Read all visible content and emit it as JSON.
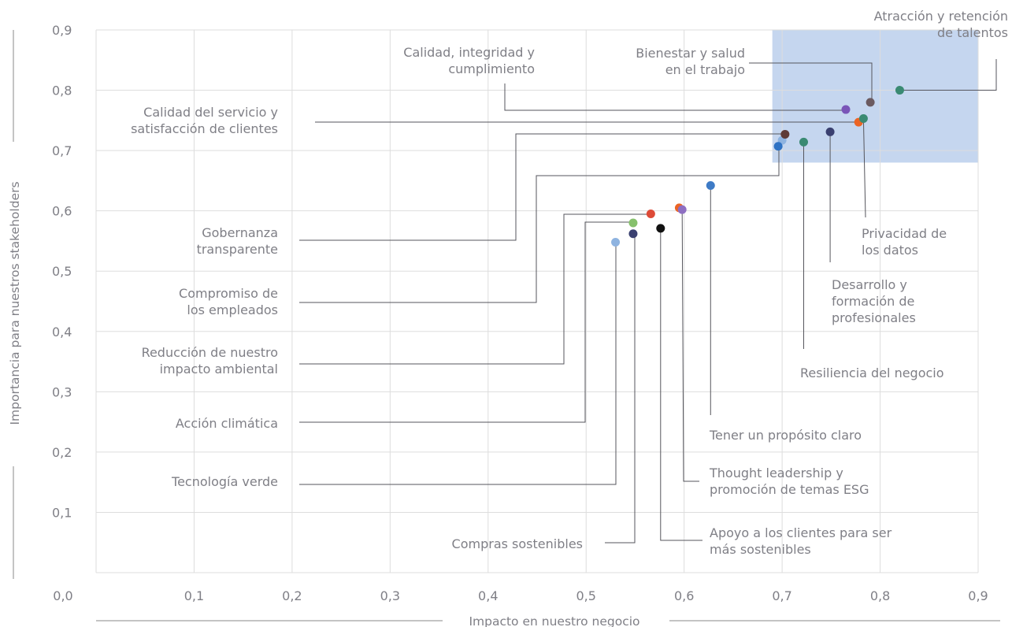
{
  "chart_data": {
    "type": "scatter",
    "title": "",
    "xlabel": "Impacto en nuestro negocio",
    "ylabel": "Importancia para nuestros stakeholders",
    "xlim": [
      0,
      0.9
    ],
    "ylim": [
      0,
      0.9
    ],
    "x_ticks": [
      "0,0",
      "0,1",
      "0,2",
      "0,3",
      "0,4",
      "0,5",
      "0,6",
      "0,7",
      "0,8",
      "0,9"
    ],
    "y_ticks": [
      "0,0",
      "0,1",
      "0,2",
      "0,3",
      "0,4",
      "0,5",
      "0,6",
      "0,7",
      "0,8",
      "0,9"
    ],
    "grid": true,
    "highlight_region": {
      "x": [
        0.69,
        0.9
      ],
      "y": [
        0.68,
        0.9
      ],
      "color": "#c5d6ef"
    },
    "points": [
      {
        "label": [
          "Atracción y retención",
          "de talentos"
        ],
        "x": 0.82,
        "y": 0.8,
        "color": "#3a8a73"
      },
      {
        "label": [
          "Bienestar y salud",
          "en el trabajo"
        ],
        "x": 0.79,
        "y": 0.78,
        "color": "#6b5a60"
      },
      {
        "label": [
          "Calidad, integridad y",
          "cumplimiento"
        ],
        "x": 0.765,
        "y": 0.768,
        "color": "#7a55b8"
      },
      {
        "label": [
          "Calidad del servicio y",
          "satisfacción de clientes"
        ],
        "x": 0.778,
        "y": 0.747,
        "color": "#ec6424"
      },
      {
        "label": [
          "Privacidad de",
          "los datos"
        ],
        "x": 0.783,
        "y": 0.753,
        "color": "#3a8a73"
      },
      {
        "label": [
          "Desarrollo y",
          "formación de",
          "profesionales"
        ],
        "x": 0.749,
        "y": 0.731,
        "color": "#3a4070"
      },
      {
        "label": [
          "Gobernanza",
          "transparente"
        ],
        "x": 0.703,
        "y": 0.727,
        "color": "#5e3a36"
      },
      {
        "label": [
          "Resiliencia del negocio"
        ],
        "x": 0.722,
        "y": 0.714,
        "color": "#3a8a73"
      },
      {
        "label": [
          "Compromiso de",
          "los empleados"
        ],
        "x": 0.696,
        "y": 0.707,
        "color": "#2e72c4"
      },
      {
        "label": [
          "Tener un propósito claro"
        ],
        "x": 0.627,
        "y": 0.642,
        "color": "#3e7bc6"
      },
      {
        "label": [
          "Thought leadership y",
          "promoción de temas ESG"
        ],
        "x": 0.598,
        "y": 0.602,
        "color": "#8e6fc2"
      },
      {
        "label": [
          "Reducción de nuestro",
          "impacto ambiental"
        ],
        "x": 0.566,
        "y": 0.595,
        "color": "#dd4a37"
      },
      {
        "label": [
          "Acción climática"
        ],
        "x": 0.548,
        "y": 0.58,
        "color": "#86c06c"
      },
      {
        "label": [
          "Apoyo a los clientes para ser",
          "más sostenibles"
        ],
        "x": 0.576,
        "y": 0.571,
        "color": "#111111"
      },
      {
        "label": [
          "Compras sostenibles"
        ],
        "x": 0.548,
        "y": 0.562,
        "color": "#3a4070"
      },
      {
        "label": [
          "Tecnología verde"
        ],
        "x": 0.53,
        "y": 0.548,
        "color": "#8eb3e0"
      }
    ],
    "unlabeled_points": [
      {
        "x": 0.7,
        "y": 0.717,
        "color": "#8eb3e0"
      },
      {
        "x": 0.595,
        "y": 0.605,
        "color": "#ec6424"
      }
    ]
  }
}
